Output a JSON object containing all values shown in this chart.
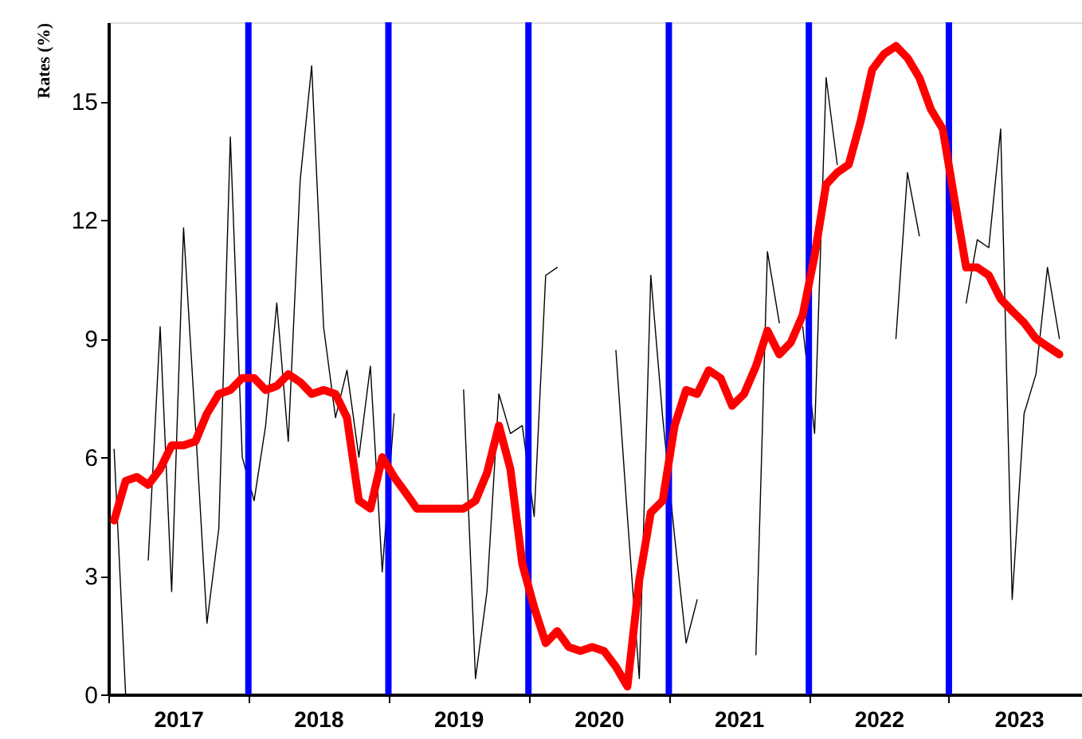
{
  "chart_data": {
    "type": "line",
    "ylabel": "Rates (%)",
    "x": [
      "2017-01-16",
      "2017-02-15",
      "2017-03-16",
      "2017-04-15",
      "2017-05-16",
      "2017-06-15",
      "2017-07-16",
      "2017-08-16",
      "2017-09-15",
      "2017-10-16",
      "2017-11-15",
      "2017-12-16",
      "2018-01-16",
      "2018-02-15",
      "2018-03-16",
      "2018-04-15",
      "2018-05-16",
      "2018-06-15",
      "2018-07-16",
      "2018-08-16",
      "2018-09-15",
      "2018-10-16",
      "2018-11-15",
      "2018-12-16",
      "2019-01-16",
      "2019-02-15",
      "2019-03-16",
      "2019-04-15",
      "2019-05-16",
      "2019-06-15",
      "2019-07-16",
      "2019-08-16",
      "2019-09-15",
      "2019-10-16",
      "2019-11-15",
      "2019-12-16",
      "2020-01-16",
      "2020-02-15",
      "2020-03-16",
      "2020-04-15",
      "2020-05-16",
      "2020-06-15",
      "2020-07-16",
      "2020-08-16",
      "2020-09-15",
      "2020-10-16",
      "2020-11-15",
      "2020-12-16",
      "2021-01-16",
      "2021-02-15",
      "2021-03-16",
      "2021-04-15",
      "2021-05-16",
      "2021-06-15",
      "2021-07-16",
      "2021-08-16",
      "2021-09-15",
      "2021-10-16",
      "2021-11-15",
      "2021-12-16",
      "2022-01-16",
      "2022-02-15",
      "2022-03-16",
      "2022-04-15",
      "2022-05-16",
      "2022-06-15",
      "2022-07-16",
      "2022-08-16",
      "2022-09-15",
      "2022-10-16",
      "2022-11-15",
      "2022-12-16",
      "2023-01-16",
      "2023-02-15",
      "2023-03-16",
      "2023-04-15",
      "2023-05-16",
      "2023-06-15",
      "2023-07-16",
      "2023-08-16",
      "2023-09-15",
      "2023-10-16"
    ],
    "series": [
      {
        "color": "#000000",
        "values": [
          6.2,
          0,
          null,
          3.4,
          9.3,
          2.6,
          11.8,
          6.8,
          1.8,
          4.2,
          14.1,
          6.0,
          4.9,
          6.8,
          9.9,
          6.4,
          13.0,
          15.9,
          9.3,
          7.0,
          8.2,
          6.0,
          8.3,
          3.1,
          7.1,
          null,
          null,
          null,
          null,
          null,
          7.7,
          0.4,
          2.6,
          7.6,
          6.6,
          6.8,
          4.5,
          10.6,
          10.8,
          null,
          null,
          null,
          null,
          8.7,
          4.5,
          0.4,
          10.6,
          7.0,
          4.0,
          1.3,
          2.4,
          null,
          null,
          null,
          null,
          1.0,
          11.2,
          9.4,
          null,
          9.3,
          6.6,
          15.6,
          13.4,
          null,
          null,
          null,
          null,
          9.0,
          13.2,
          11.6,
          null,
          null,
          null,
          9.9,
          11.5,
          11.3,
          14.3,
          2.4,
          7.1,
          8.1,
          10.8,
          9.0
        ]
      },
      {
        "color": "#ff0000",
        "values": [
          4.4,
          5.4,
          5.5,
          5.3,
          5.7,
          6.3,
          6.3,
          6.4,
          7.1,
          7.6,
          7.7,
          8.0,
          8.0,
          7.7,
          7.8,
          8.1,
          7.9,
          7.6,
          7.7,
          7.6,
          7.0,
          4.9,
          4.7,
          6.0,
          5.5,
          5.1,
          4.7,
          4.7,
          4.7,
          4.7,
          4.7,
          4.9,
          5.6,
          6.8,
          5.7,
          3.3,
          2.2,
          1.3,
          1.6,
          1.2,
          1.1,
          1.2,
          1.1,
          0.7,
          0.2,
          2.9,
          4.6,
          4.9,
          6.8,
          7.7,
          7.6,
          8.2,
          8.0,
          7.3,
          7.6,
          8.3,
          9.2,
          8.6,
          8.9,
          9.6,
          11.1,
          12.9,
          13.2,
          13.4,
          14.5,
          15.8,
          16.2,
          16.4,
          16.1,
          15.6,
          14.8,
          14.3,
          12.5,
          10.8,
          10.8,
          10.6,
          10.0,
          9.7,
          9.4,
          9.0,
          8.8,
          8.6
        ]
      }
    ],
    "xlim": [
      "2017-01-01",
      "2023-12-14"
    ],
    "xticks": [
      {
        "value": "2017-01-01",
        "label": null
      },
      {
        "value": "2017-07-02",
        "label": "2017"
      },
      {
        "value": "2018-01-01",
        "label": null
      },
      {
        "value": "2018-07-02",
        "label": "2018"
      },
      {
        "value": "2019-01-01",
        "label": null
      },
      {
        "value": "2019-07-02",
        "label": "2019"
      },
      {
        "value": "2020-01-01",
        "label": null
      },
      {
        "value": "2020-07-02",
        "label": "2020"
      },
      {
        "value": "2021-01-01",
        "label": null
      },
      {
        "value": "2021-07-02",
        "label": "2021"
      },
      {
        "value": "2022-01-01",
        "label": null
      },
      {
        "value": "2022-07-02",
        "label": "2022"
      },
      {
        "value": "2023-01-01",
        "label": null
      },
      {
        "value": "2023-07-02",
        "label": "2023"
      }
    ],
    "ylim": [
      0,
      17
    ],
    "yticks": [
      0,
      3,
      6,
      9,
      12,
      15
    ],
    "ref_lines": [
      {
        "axis": "x",
        "value": "2018-01",
        "color": "#0000ff"
      },
      {
        "axis": "x",
        "value": "2019-01",
        "color": "#0000ff"
      },
      {
        "axis": "x",
        "value": "2020-01",
        "color": "#0000ff"
      },
      {
        "axis": "x",
        "value": "2021-01",
        "color": "#0000ff"
      },
      {
        "axis": "x",
        "value": "2022-01",
        "color": "#0000ff"
      },
      {
        "axis": "x",
        "value": "2023-01",
        "color": "#0000ff"
      }
    ],
    "grid": false,
    "marker": "none",
    "line_style": "solid"
  }
}
